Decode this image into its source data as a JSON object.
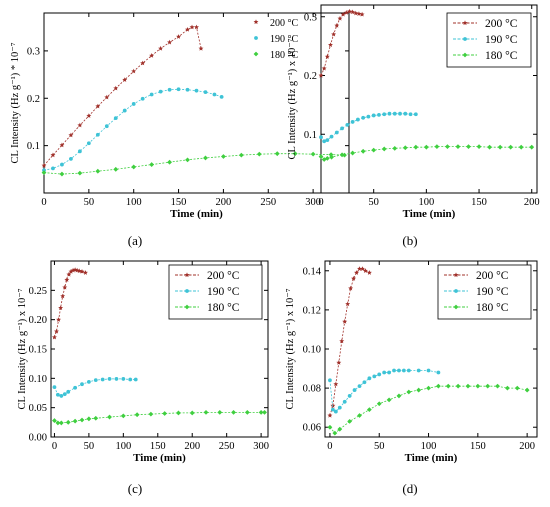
{
  "chart_data": [
    {
      "type": "scatter",
      "panel_label": "(a)",
      "xlabel": "Time (min)",
      "ylabel": "CL Intensity (Hz g⁻¹) * 10⁻⁷",
      "xlim": [
        0,
        340
      ],
      "ylim": [
        0.0,
        0.38
      ],
      "xticks": [
        0,
        50,
        100,
        150,
        200,
        250,
        300
      ],
      "yticks": [
        0.1,
        0.2,
        0.3
      ],
      "ytick_labels": [
        "0.1",
        "0.2",
        "0.3"
      ],
      "legend": "top-right",
      "series": [
        {
          "name": "200 °C",
          "color": "#a0302a",
          "marker": "star",
          "x": [
            0,
            10,
            20,
            30,
            40,
            50,
            60,
            70,
            80,
            90,
            100,
            110,
            120,
            130,
            140,
            150,
            160,
            165,
            170,
            175
          ],
          "y": [
            0.058,
            0.08,
            0.101,
            0.122,
            0.143,
            0.163,
            0.183,
            0.202,
            0.221,
            0.239,
            0.257,
            0.274,
            0.29,
            0.305,
            0.318,
            0.33,
            0.345,
            0.35,
            0.35,
            0.305
          ]
        },
        {
          "name": "190 °C",
          "color": "#3ec3d6",
          "marker": "circle",
          "x": [
            0,
            10,
            20,
            30,
            40,
            50,
            60,
            70,
            80,
            90,
            100,
            110,
            120,
            130,
            140,
            150,
            160,
            170,
            180,
            190,
            198
          ],
          "y": [
            0.048,
            0.052,
            0.06,
            0.072,
            0.088,
            0.105,
            0.123,
            0.141,
            0.158,
            0.174,
            0.188,
            0.199,
            0.208,
            0.214,
            0.218,
            0.219,
            0.218,
            0.216,
            0.213,
            0.208,
            0.203
          ]
        },
        {
          "name": "180 °C",
          "color": "#3fcf3f",
          "marker": "diamond",
          "x": [
            0,
            20,
            40,
            60,
            80,
            100,
            120,
            140,
            160,
            180,
            200,
            220,
            240,
            260,
            280,
            300,
            320,
            335
          ],
          "y": [
            0.043,
            0.04,
            0.042,
            0.046,
            0.05,
            0.055,
            0.06,
            0.065,
            0.07,
            0.074,
            0.077,
            0.08,
            0.082,
            0.083,
            0.083,
            0.082,
            0.081,
            0.08
          ]
        }
      ]
    },
    {
      "type": "scatter",
      "panel_label": "(b)",
      "xlabel": "Time (min)",
      "ylabel": "CL Intensity (Hz g⁻¹) x 10⁻⁷",
      "xlim": [
        0,
        205
      ],
      "ylim": [
        0.0,
        0.32
      ],
      "xticks": [
        0,
        50,
        100,
        150,
        200
      ],
      "yticks": [
        0.1,
        0.2,
        0.3
      ],
      "ytick_labels": [
        "0.1",
        "0.2",
        "0.3"
      ],
      "legend": "top-right",
      "series": [
        {
          "name": "200 °C",
          "color": "#a0302a",
          "marker": "star",
          "x": [
            0,
            3,
            6,
            9,
            12,
            15,
            18,
            21,
            24,
            27,
            30,
            33,
            36,
            39
          ],
          "y": [
            0.2,
            0.212,
            0.232,
            0.252,
            0.27,
            0.285,
            0.297,
            0.304,
            0.307,
            0.309,
            0.308,
            0.306,
            0.305,
            0.304
          ]
        },
        {
          "name": "190 °C",
          "color": "#3ec3d6",
          "marker": "circle",
          "x": [
            0,
            3,
            6,
            10,
            15,
            20,
            25,
            30,
            35,
            40,
            45,
            50,
            55,
            60,
            65,
            70,
            75,
            80,
            85,
            90
          ],
          "y": [
            0.095,
            0.088,
            0.09,
            0.096,
            0.103,
            0.11,
            0.116,
            0.121,
            0.125,
            0.128,
            0.13,
            0.132,
            0.133,
            0.134,
            0.135,
            0.135,
            0.135,
            0.135,
            0.134,
            0.134
          ]
        },
        {
          "name": "180 °C",
          "color": "#3fcf3f",
          "marker": "diamond",
          "x": [
            0,
            3,
            6,
            10,
            20,
            30,
            40,
            50,
            60,
            70,
            80,
            90,
            100,
            110,
            120,
            130,
            140,
            150,
            160,
            170,
            180,
            190,
            200
          ],
          "y": [
            0.062,
            0.057,
            0.059,
            0.061,
            0.065,
            0.068,
            0.071,
            0.073,
            0.075,
            0.076,
            0.077,
            0.078,
            0.078,
            0.079,
            0.079,
            0.079,
            0.079,
            0.079,
            0.078,
            0.078,
            0.078,
            0.078,
            0.078
          ]
        }
      ]
    },
    {
      "type": "scatter",
      "panel_label": "(c)",
      "xlabel": "Time (min)",
      "ylabel": "CL Intensity (Hz g⁻¹) x 10⁻⁷",
      "xlim": [
        -5,
        310
      ],
      "ylim": [
        0.0,
        0.3
      ],
      "xticks": [
        0,
        50,
        100,
        150,
        200,
        250,
        300
      ],
      "yticks": [
        0.0,
        0.05,
        0.1,
        0.15,
        0.2,
        0.25
      ],
      "ytick_labels": [
        "0.00",
        "0.05",
        "0.10",
        "0.15",
        "0.20",
        "0.25"
      ],
      "legend": "top-right",
      "series": [
        {
          "name": "200 °C",
          "color": "#a0302a",
          "marker": "star",
          "x": [
            0,
            3,
            6,
            9,
            12,
            15,
            18,
            21,
            24,
            27,
            30,
            33,
            36,
            40,
            45
          ],
          "y": [
            0.17,
            0.18,
            0.2,
            0.22,
            0.24,
            0.255,
            0.268,
            0.277,
            0.282,
            0.284,
            0.285,
            0.284,
            0.283,
            0.282,
            0.28
          ]
        },
        {
          "name": "190 °C",
          "color": "#3ec3d6",
          "marker": "circle",
          "x": [
            0,
            5,
            10,
            15,
            20,
            30,
            40,
            50,
            60,
            70,
            80,
            90,
            100,
            110,
            118
          ],
          "y": [
            0.085,
            0.072,
            0.07,
            0.073,
            0.077,
            0.084,
            0.09,
            0.094,
            0.097,
            0.098,
            0.099,
            0.099,
            0.099,
            0.098,
            0.098
          ]
        },
        {
          "name": "180 °C",
          "color": "#3fcf3f",
          "marker": "diamond",
          "x": [
            0,
            5,
            10,
            20,
            30,
            40,
            50,
            60,
            80,
            100,
            120,
            140,
            160,
            180,
            200,
            220,
            240,
            260,
            280,
            300,
            305
          ],
          "y": [
            0.028,
            0.024,
            0.024,
            0.025,
            0.027,
            0.029,
            0.031,
            0.032,
            0.034,
            0.036,
            0.038,
            0.039,
            0.04,
            0.041,
            0.041,
            0.042,
            0.042,
            0.042,
            0.042,
            0.042,
            0.042
          ]
        }
      ]
    },
    {
      "type": "scatter",
      "panel_label": "(d)",
      "xlabel": "Time (min)",
      "ylabel": "CL Intensity (Hz g⁻¹) x 10⁻⁷",
      "xlim": [
        -5,
        210
      ],
      "ylim": [
        0.055,
        0.145
      ],
      "xticks": [
        0,
        50,
        100,
        150,
        200
      ],
      "yticks": [
        0.06,
        0.08,
        0.1,
        0.12,
        0.14
      ],
      "ytick_labels": [
        "0.06",
        "0.08",
        "0.10",
        "0.12",
        "0.14"
      ],
      "legend": "top-right",
      "series": [
        {
          "name": "200 °C",
          "color": "#a0302a",
          "marker": "star",
          "x": [
            0,
            3,
            6,
            9,
            12,
            15,
            18,
            21,
            24,
            27,
            30,
            33,
            36,
            40
          ],
          "y": [
            0.066,
            0.071,
            0.082,
            0.093,
            0.104,
            0.114,
            0.123,
            0.131,
            0.136,
            0.139,
            0.141,
            0.141,
            0.14,
            0.139
          ]
        },
        {
          "name": "190 °C",
          "color": "#3ec3d6",
          "marker": "circle",
          "x": [
            0,
            3,
            6,
            10,
            15,
            20,
            25,
            30,
            35,
            40,
            45,
            50,
            55,
            60,
            65,
            70,
            75,
            80,
            90,
            100,
            110
          ],
          "y": [
            0.084,
            0.069,
            0.068,
            0.07,
            0.073,
            0.076,
            0.079,
            0.081,
            0.083,
            0.085,
            0.086,
            0.087,
            0.088,
            0.088,
            0.089,
            0.089,
            0.089,
            0.089,
            0.089,
            0.089,
            0.088
          ]
        },
        {
          "name": "180 °C",
          "color": "#3fcf3f",
          "marker": "diamond",
          "x": [
            0,
            5,
            10,
            20,
            30,
            40,
            50,
            60,
            70,
            80,
            90,
            100,
            110,
            120,
            130,
            140,
            150,
            160,
            170,
            180,
            190,
            200
          ],
          "y": [
            0.06,
            0.057,
            0.059,
            0.063,
            0.066,
            0.069,
            0.072,
            0.074,
            0.076,
            0.078,
            0.079,
            0.08,
            0.081,
            0.081,
            0.081,
            0.081,
            0.081,
            0.081,
            0.081,
            0.08,
            0.08,
            0.079
          ]
        }
      ]
    }
  ]
}
